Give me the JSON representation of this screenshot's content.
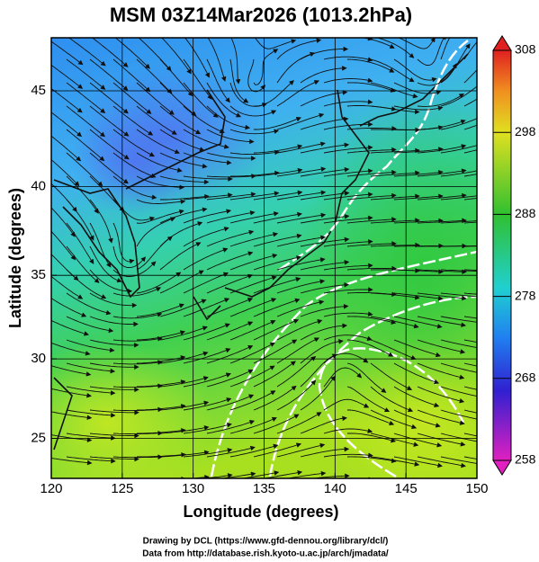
{
  "title": "MSM 03Z14Mar2026 (1013.2hPa)",
  "map": {
    "xlabel": "Longitude (degrees)",
    "ylabel": "Latitude  (degrees)",
    "projection": "mercator",
    "xlim": [
      120,
      150
    ],
    "ylim": [
      22.4,
      47.6
    ],
    "xticks": [
      120,
      125,
      130,
      135,
      140,
      145,
      150
    ],
    "yticks": [
      25,
      30,
      35,
      40,
      45
    ],
    "grid": true
  },
  "colorbar": {
    "lim": [
      258,
      308
    ],
    "ticks": [
      258,
      268,
      278,
      288,
      298,
      308
    ]
  },
  "footer": [
    "Drawing by DCL (https://www.gfd-dennou.org/library/dcl/)",
    "Data from http://database.rish.kyoto-u.ac.jp/arch/jmadata/"
  ]
}
